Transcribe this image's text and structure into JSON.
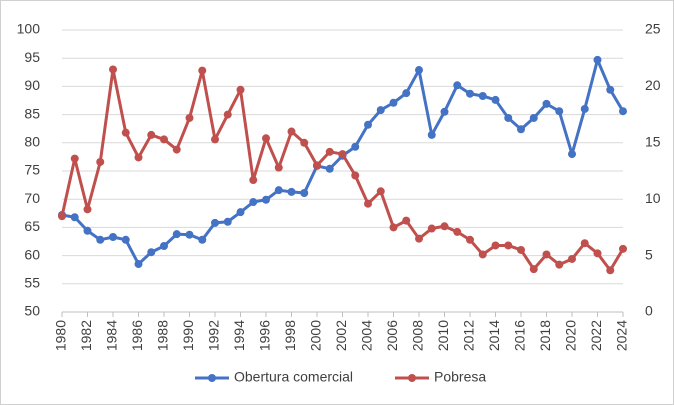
{
  "chart_data": {
    "type": "line",
    "x": [
      1980,
      1981,
      1982,
      1983,
      1984,
      1985,
      1986,
      1987,
      1988,
      1989,
      1990,
      1991,
      1992,
      1993,
      1994,
      1995,
      1996,
      1997,
      1998,
      1999,
      2000,
      2001,
      2002,
      2003,
      2004,
      2005,
      2006,
      2007,
      2008,
      2009,
      2010,
      2011,
      2012,
      2013,
      2014,
      2015,
      2016,
      2017,
      2018,
      2019,
      2020,
      2021,
      2022,
      2023,
      2024
    ],
    "xlim": [
      1980,
      2024
    ],
    "xticks": [
      1980,
      1982,
      1984,
      1986,
      1988,
      1990,
      1992,
      1994,
      1996,
      1998,
      2000,
      2002,
      2004,
      2006,
      2008,
      2010,
      2012,
      2014,
      2016,
      2018,
      2020,
      2022,
      2024
    ],
    "ylim": [
      50,
      100
    ],
    "yticks": [
      50,
      55,
      60,
      65,
      70,
      75,
      80,
      85,
      90,
      95,
      100
    ],
    "y2lim": [
      0,
      25
    ],
    "y2ticks": [
      0,
      5,
      10,
      15,
      20,
      25
    ],
    "grid": true,
    "legend": "bottom",
    "series": [
      {
        "name": "Obertura comercial",
        "color": "#4472c4",
        "values": [
          67.2,
          66.8,
          64.4,
          62.8,
          63.3,
          62.8,
          58.5,
          60.6,
          61.7,
          63.8,
          63.7,
          62.8,
          65.8,
          66.0,
          67.7,
          69.5,
          69.9,
          71.6,
          71.3,
          71.1,
          75.9,
          75.4,
          77.7,
          79.3,
          83.2,
          85.8,
          87.1,
          88.8,
          92.9,
          81.4,
          85.5,
          90.2,
          88.7,
          88.3,
          87.6,
          84.4,
          82.4,
          84.4,
          86.9,
          85.6,
          78.0,
          86.0,
          94.7,
          89.4,
          85.6
        ]
      },
      {
        "name": "Pobresa",
        "color": "#c0504d",
        "axis": "y2",
        "values": [
          8.5,
          13.6,
          9.1,
          13.3,
          21.5,
          15.9,
          13.7,
          15.7,
          15.3,
          14.4,
          17.2,
          21.4,
          15.3,
          17.5,
          19.7,
          11.7,
          15.4,
          12.8,
          16.0,
          15.0,
          13.0,
          14.2,
          14.0,
          12.1,
          9.6,
          10.7,
          7.5,
          8.1,
          6.5,
          7.4,
          7.6,
          7.1,
          6.4,
          5.1,
          5.9,
          5.9,
          5.5,
          3.8,
          5.1,
          4.2,
          4.7,
          6.1,
          5.2,
          3.7,
          5.6
        ]
      }
    ]
  }
}
